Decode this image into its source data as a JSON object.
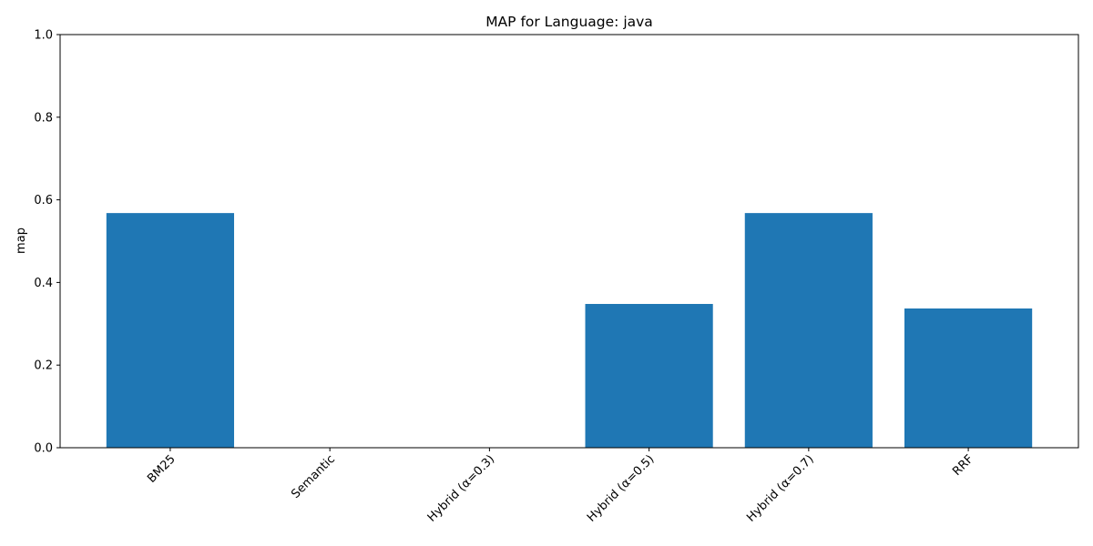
{
  "chart_data": {
    "type": "bar",
    "title": "MAP for Language: java",
    "xlabel": "",
    "ylabel": "map",
    "categories": [
      "BM25",
      "Semantic",
      "Hybrid (α=0.3)",
      "Hybrid (α=0.5)",
      "Hybrid (α=0.7)",
      "RRF"
    ],
    "values": [
      0.568,
      0.0,
      0.0,
      0.348,
      0.568,
      0.337
    ],
    "ylim": [
      0,
      1.0
    ],
    "yticks": [
      0.0,
      0.2,
      0.4,
      0.6,
      0.8,
      1.0
    ],
    "ytick_labels": [
      "0.0",
      "0.2",
      "0.4",
      "0.6",
      "0.8",
      "1.0"
    ],
    "xtick_rotation_deg": 45,
    "grid": false,
    "legend": "none",
    "bar_color": "#1f77b4"
  }
}
